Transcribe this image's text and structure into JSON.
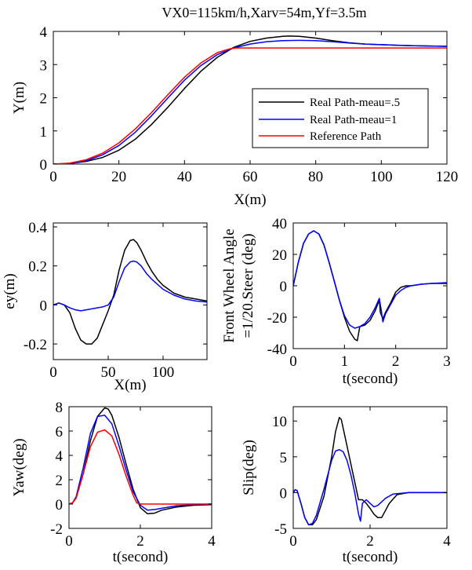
{
  "figure_title": "VX0=115km/h,Xarv=54m,Yf=3.5m",
  "colors": {
    "black": "#000000",
    "blue": "#0000ff",
    "red": "#ff0000"
  },
  "chart_data": [
    {
      "id": "path",
      "type": "line",
      "title": "VX0=115km/h,Xarv=54m,Yf=3.5m",
      "xlabel": "X(m)",
      "ylabel": "Y(m)",
      "xlim": [
        0,
        120
      ],
      "ylim": [
        0,
        4
      ],
      "xticks": [
        0,
        20,
        40,
        60,
        80,
        100,
        120
      ],
      "yticks": [
        0,
        1,
        2,
        3,
        4
      ],
      "legend": {
        "placement": "right",
        "entries": [
          "Real Path-meau=.5",
          "Real Path-meau=1",
          "Reference Path"
        ]
      },
      "series": [
        {
          "name": "Real Path-meau=.5",
          "color": "#000000",
          "x": [
            0,
            5,
            10,
            15,
            20,
            25,
            30,
            35,
            40,
            45,
            50,
            55,
            60,
            65,
            70,
            72,
            75,
            80,
            85,
            90,
            95,
            100,
            105,
            110,
            115,
            120
          ],
          "y": [
            0,
            0.02,
            0.08,
            0.2,
            0.42,
            0.75,
            1.2,
            1.72,
            2.28,
            2.8,
            3.22,
            3.52,
            3.7,
            3.8,
            3.85,
            3.86,
            3.85,
            3.8,
            3.72,
            3.66,
            3.62,
            3.6,
            3.58,
            3.57,
            3.56,
            3.55
          ]
        },
        {
          "name": "Real Path-meau=1",
          "color": "#0000ff",
          "x": [
            0,
            5,
            10,
            15,
            20,
            25,
            30,
            35,
            40,
            45,
            50,
            55,
            60,
            65,
            70,
            75,
            80,
            85,
            90,
            95,
            100,
            110,
            120
          ],
          "y": [
            0,
            0.02,
            0.1,
            0.28,
            0.56,
            0.96,
            1.46,
            2.0,
            2.53,
            2.97,
            3.3,
            3.5,
            3.62,
            3.69,
            3.72,
            3.73,
            3.72,
            3.69,
            3.65,
            3.62,
            3.6,
            3.57,
            3.55
          ]
        },
        {
          "name": "Reference Path",
          "color": "#ff0000",
          "x": [
            0,
            5,
            10,
            15,
            20,
            25,
            30,
            35,
            40,
            45,
            50,
            54,
            56,
            60,
            70,
            80,
            90,
            100,
            110,
            120
          ],
          "y": [
            0,
            0.03,
            0.13,
            0.33,
            0.64,
            1.06,
            1.56,
            2.1,
            2.62,
            3.05,
            3.36,
            3.48,
            3.5,
            3.5,
            3.5,
            3.5,
            3.5,
            3.5,
            3.5,
            3.5
          ]
        }
      ]
    },
    {
      "id": "ey",
      "type": "line",
      "xlabel": "X(m)",
      "ylabel": "ey(m)",
      "xlim": [
        0,
        140
      ],
      "ylim": [
        -0.28,
        0.42
      ],
      "xticks": [
        0,
        50,
        100
      ],
      "yticks": [
        -0.2,
        0,
        0.2,
        0.4
      ],
      "ytick_labels": [
        "-0.2",
        "0",
        "0.2",
        "0.4"
      ],
      "series": [
        {
          "color": "#000000",
          "x": [
            0,
            5,
            10,
            15,
            20,
            25,
            30,
            35,
            40,
            45,
            50,
            55,
            60,
            65,
            70,
            73,
            76,
            80,
            85,
            90,
            95,
            100,
            110,
            120,
            130,
            140
          ],
          "y": [
            0,
            0.01,
            0,
            -0.04,
            -0.12,
            -0.18,
            -0.2,
            -0.2,
            -0.17,
            -0.1,
            -0.03,
            0.05,
            0.18,
            0.28,
            0.33,
            0.335,
            0.32,
            0.28,
            0.22,
            0.17,
            0.13,
            0.1,
            0.06,
            0.04,
            0.03,
            0.02
          ]
        },
        {
          "color": "#0000ff",
          "x": [
            0,
            5,
            10,
            15,
            20,
            25,
            30,
            35,
            40,
            45,
            50,
            55,
            60,
            65,
            70,
            73,
            76,
            80,
            85,
            90,
            100,
            110,
            120,
            130,
            140
          ],
          "y": [
            0,
            0.01,
            0,
            -0.015,
            -0.025,
            -0.03,
            -0.025,
            -0.02,
            -0.015,
            -0.01,
            0,
            0.04,
            0.12,
            0.19,
            0.22,
            0.225,
            0.22,
            0.2,
            0.16,
            0.13,
            0.08,
            0.05,
            0.03,
            0.02,
            0.015
          ]
        }
      ]
    },
    {
      "id": "steer",
      "type": "line",
      "xlabel": "t(second)",
      "ylabel_lines": [
        "Front Wheel Angle",
        "=1/20.Steer (deg)"
      ],
      "xlim": [
        0,
        3
      ],
      "ylim": [
        -40,
        40
      ],
      "xticks": [
        0,
        1,
        2,
        3
      ],
      "yticks": [
        -40,
        -20,
        0,
        20,
        40
      ],
      "series": [
        {
          "color": "#000000",
          "t": [
            0,
            0.1,
            0.2,
            0.3,
            0.4,
            0.5,
            0.6,
            0.7,
            0.8,
            0.9,
            1.0,
            1.1,
            1.2,
            1.25,
            1.3,
            1.4,
            1.5,
            1.6,
            1.68,
            1.7,
            1.75,
            1.8,
            1.9,
            2.0,
            2.1,
            2.2,
            2.3,
            2.5,
            2.7,
            3.0
          ],
          "y": [
            0,
            15,
            27,
            33,
            35,
            33,
            26,
            15,
            3,
            -9,
            -20,
            -29,
            -34,
            -35,
            -26,
            -25,
            -22,
            -16,
            -9,
            -17,
            -21,
            -17,
            -11,
            -4,
            -1,
            0,
            0,
            1,
            1.5,
            1.5
          ]
        },
        {
          "color": "#0000ff",
          "t": [
            0,
            0.1,
            0.2,
            0.3,
            0.4,
            0.5,
            0.6,
            0.7,
            0.8,
            0.9,
            1.0,
            1.1,
            1.2,
            1.3,
            1.4,
            1.5,
            1.6,
            1.68,
            1.72,
            1.75,
            1.8,
            1.9,
            2.0,
            2.1,
            2.2,
            2.3,
            2.5,
            2.7,
            3.0
          ],
          "y": [
            0,
            15,
            27,
            33,
            35,
            33,
            26,
            15,
            3,
            -9,
            -19,
            -25,
            -27,
            -26,
            -24,
            -20,
            -14,
            -8,
            -16,
            -23,
            -18,
            -12,
            -6,
            -3,
            -1,
            0,
            1,
            1.5,
            2
          ]
        }
      ]
    },
    {
      "id": "yaw",
      "type": "line",
      "xlabel": "t(second)",
      "ylabel": "Yaw(deg)",
      "xlim": [
        0,
        4
      ],
      "ylim": [
        -2,
        8
      ],
      "xticks": [
        0,
        2,
        4
      ],
      "yticks": [
        -2,
        0,
        2,
        4,
        6,
        8
      ],
      "series": [
        {
          "color": "#000000",
          "t": [
            0,
            0.1,
            0.2,
            0.4,
            0.6,
            0.8,
            1.0,
            1.1,
            1.2,
            1.4,
            1.6,
            1.8,
            2.0,
            2.2,
            2.4,
            2.6,
            3.0,
            3.5,
            4.0
          ],
          "y": [
            0,
            0.1,
            0.5,
            2.5,
            5.2,
            7.2,
            7.9,
            7.8,
            7.3,
            5.5,
            3.3,
            1.2,
            -0.3,
            -0.8,
            -0.75,
            -0.5,
            -0.25,
            -0.1,
            -0.05
          ]
        },
        {
          "color": "#0000ff",
          "t": [
            0,
            0.1,
            0.2,
            0.4,
            0.6,
            0.8,
            1.0,
            1.2,
            1.4,
            1.6,
            1.8,
            2.0,
            2.2,
            2.4,
            2.6,
            3.0,
            3.5,
            4.0
          ],
          "y": [
            0,
            0.1,
            0.6,
            3.0,
            5.8,
            7.2,
            7.3,
            6.6,
            4.8,
            2.8,
            1.0,
            -0.1,
            -0.5,
            -0.45,
            -0.35,
            -0.15,
            -0.05,
            0
          ]
        },
        {
          "color": "#ff0000",
          "t": [
            0,
            0.1,
            0.2,
            0.4,
            0.6,
            0.8,
            1.0,
            1.2,
            1.4,
            1.6,
            1.8,
            1.9,
            2.0,
            2.5,
            3.0,
            3.5,
            4.0
          ],
          "y": [
            0,
            0.1,
            0.5,
            2.5,
            4.7,
            5.9,
            6.1,
            5.6,
            4.1,
            2.3,
            0.7,
            0.1,
            0,
            0,
            0,
            0,
            0
          ]
        }
      ]
    },
    {
      "id": "slip",
      "type": "line",
      "xlabel": "t(second)",
      "ylabel": "Slip(deg)",
      "xlim": [
        0,
        4
      ],
      "ylim": [
        -5,
        12
      ],
      "xticks": [
        0,
        2,
        4
      ],
      "yticks": [
        -5,
        0,
        5,
        10
      ],
      "series": [
        {
          "color": "#000000",
          "t": [
            0,
            0.05,
            0.1,
            0.2,
            0.3,
            0.4,
            0.5,
            0.6,
            0.8,
            1.0,
            1.1,
            1.2,
            1.25,
            1.3,
            1.4,
            1.5,
            1.6,
            1.7,
            1.8,
            1.9,
            2.0,
            2.1,
            2.2,
            2.3,
            2.5,
            2.7,
            3.0,
            3.5,
            4.0
          ],
          "y": [
            0,
            0.4,
            0.3,
            -1.5,
            -3.5,
            -4.5,
            -4.5,
            -3.8,
            -0.5,
            5.0,
            8.5,
            10.5,
            10.2,
            9.0,
            6.5,
            4.0,
            1.5,
            -1.0,
            -1.0,
            -1.5,
            -2.2,
            -3.0,
            -3.5,
            -3.5,
            -1.5,
            -0.3,
            0,
            0,
            0
          ]
        },
        {
          "color": "#0000ff",
          "t": [
            0,
            0.05,
            0.1,
            0.2,
            0.3,
            0.4,
            0.5,
            0.6,
            0.8,
            1.0,
            1.1,
            1.2,
            1.3,
            1.4,
            1.5,
            1.6,
            1.7,
            1.75,
            1.8,
            1.9,
            2.0,
            2.1,
            2.2,
            2.4,
            2.6,
            3.0,
            3.5,
            4.0
          ],
          "y": [
            0,
            0.4,
            0.3,
            -1.5,
            -3.5,
            -4.5,
            -4.3,
            -3.2,
            0.5,
            4.5,
            5.8,
            6.0,
            5.7,
            4.5,
            2.5,
            0,
            -3.0,
            -4.0,
            -1.5,
            -1.0,
            -1.5,
            -2.0,
            -1.8,
            -0.8,
            -0.2,
            0,
            0,
            0
          ]
        }
      ]
    }
  ]
}
